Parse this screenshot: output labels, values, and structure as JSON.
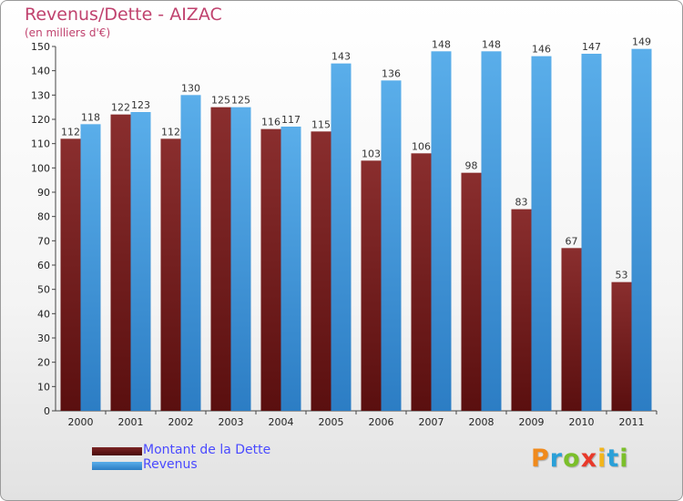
{
  "title": "Revenus/Dette - AIZAC",
  "subtitle": "(en milliers d'€)",
  "logo": {
    "text": "Proxiti",
    "letters": [
      {
        "char": "P",
        "color": "#f08a1c"
      },
      {
        "char": "r",
        "color": "#2aa0d8"
      },
      {
        "char": "o",
        "color": "#7bbf2a"
      },
      {
        "char": "x",
        "color": "#e8392a"
      },
      {
        "char": "i",
        "color": "#f2b51b"
      },
      {
        "char": "t",
        "color": "#2aa0d8"
      },
      {
        "char": "i",
        "color": "#7bbf2a"
      }
    ]
  },
  "colors": {
    "dette": "#7a2424",
    "revenus": "#4fa6e6",
    "title": "#c0426e",
    "legend_text": "#4a4aff"
  },
  "chart_data": {
    "type": "bar",
    "title": "Revenus/Dette - AIZAC",
    "subtitle": "(en milliers d'€)",
    "categories": [
      "2000",
      "2001",
      "2002",
      "2003",
      "2004",
      "2005",
      "2006",
      "2007",
      "2008",
      "2009",
      "2010",
      "2011"
    ],
    "series": [
      {
        "name": "Montant de la Dette",
        "color": "#7a2424",
        "values": [
          112,
          122,
          112,
          125,
          116,
          115,
          103,
          106,
          98,
          83,
          67,
          53
        ]
      },
      {
        "name": "Revenus",
        "color": "#4fa6e6",
        "values": [
          118,
          123,
          130,
          125,
          117,
          143,
          136,
          148,
          148,
          146,
          147,
          149
        ]
      }
    ],
    "ylim": [
      0,
      150
    ],
    "yticks": [
      0,
      10,
      20,
      30,
      40,
      50,
      60,
      70,
      80,
      90,
      100,
      110,
      120,
      130,
      140,
      150
    ],
    "grid": false,
    "legend_position": "bottom-left"
  }
}
